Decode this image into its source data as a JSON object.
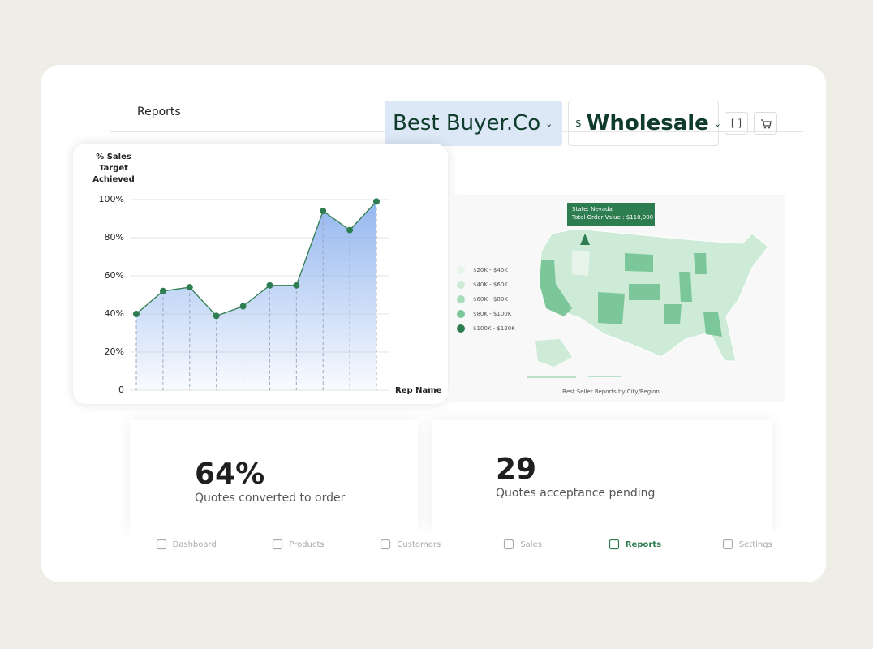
{
  "header": {
    "title": "Reports",
    "customer": "Best Buyer.Co",
    "currency": "$",
    "channel": "Wholesale"
  },
  "chart_data": {
    "type": "line",
    "title": "% Sales Target Achieved",
    "x_label": "Rep Name",
    "categories": [
      null,
      null,
      null,
      null,
      null,
      null,
      null,
      null,
      null,
      null
    ],
    "values": [
      40,
      52,
      54,
      39,
      44,
      55,
      55,
      94,
      84,
      99
    ],
    "color": "#2e7d50",
    "fill": "#8fb3ee",
    "ylim": [
      0,
      100
    ],
    "yticks": [
      0,
      {
        "value": 20,
        "label": "20%"
      },
      {
        "value": 40,
        "label": "40%"
      },
      {
        "value": 60,
        "label": "60%"
      },
      {
        "value": 80,
        "label": "80%"
      },
      {
        "value": 100,
        "label": "100%"
      }
    ],
    "grid": true
  },
  "map": {
    "tooltip": {
      "state": "State: Nevada",
      "value": "Total Order Value : $110,000"
    },
    "legend": [
      {
        "label": "$20K - $40K",
        "color": "#e6f4ea"
      },
      {
        "label": "$40K - $60K",
        "color": "#cdebd7"
      },
      {
        "label": "$60K - $80K",
        "color": "#a9dcbc"
      },
      {
        "label": "$80K - $100K",
        "color": "#7cc79a"
      },
      {
        "label": "$100K - $120K",
        "color": "#2e7d50"
      }
    ],
    "caption": "Best Seller Reports by City/Region"
  },
  "kpis": [
    {
      "value": "64%",
      "label": "Quotes converted to order"
    },
    {
      "value": "29",
      "label": "Quotes acceptance pending"
    }
  ],
  "nav": {
    "items": [
      "Dashboard",
      "Products",
      "Customers",
      "Sales",
      "Reports",
      "Settings"
    ],
    "active": 4
  }
}
